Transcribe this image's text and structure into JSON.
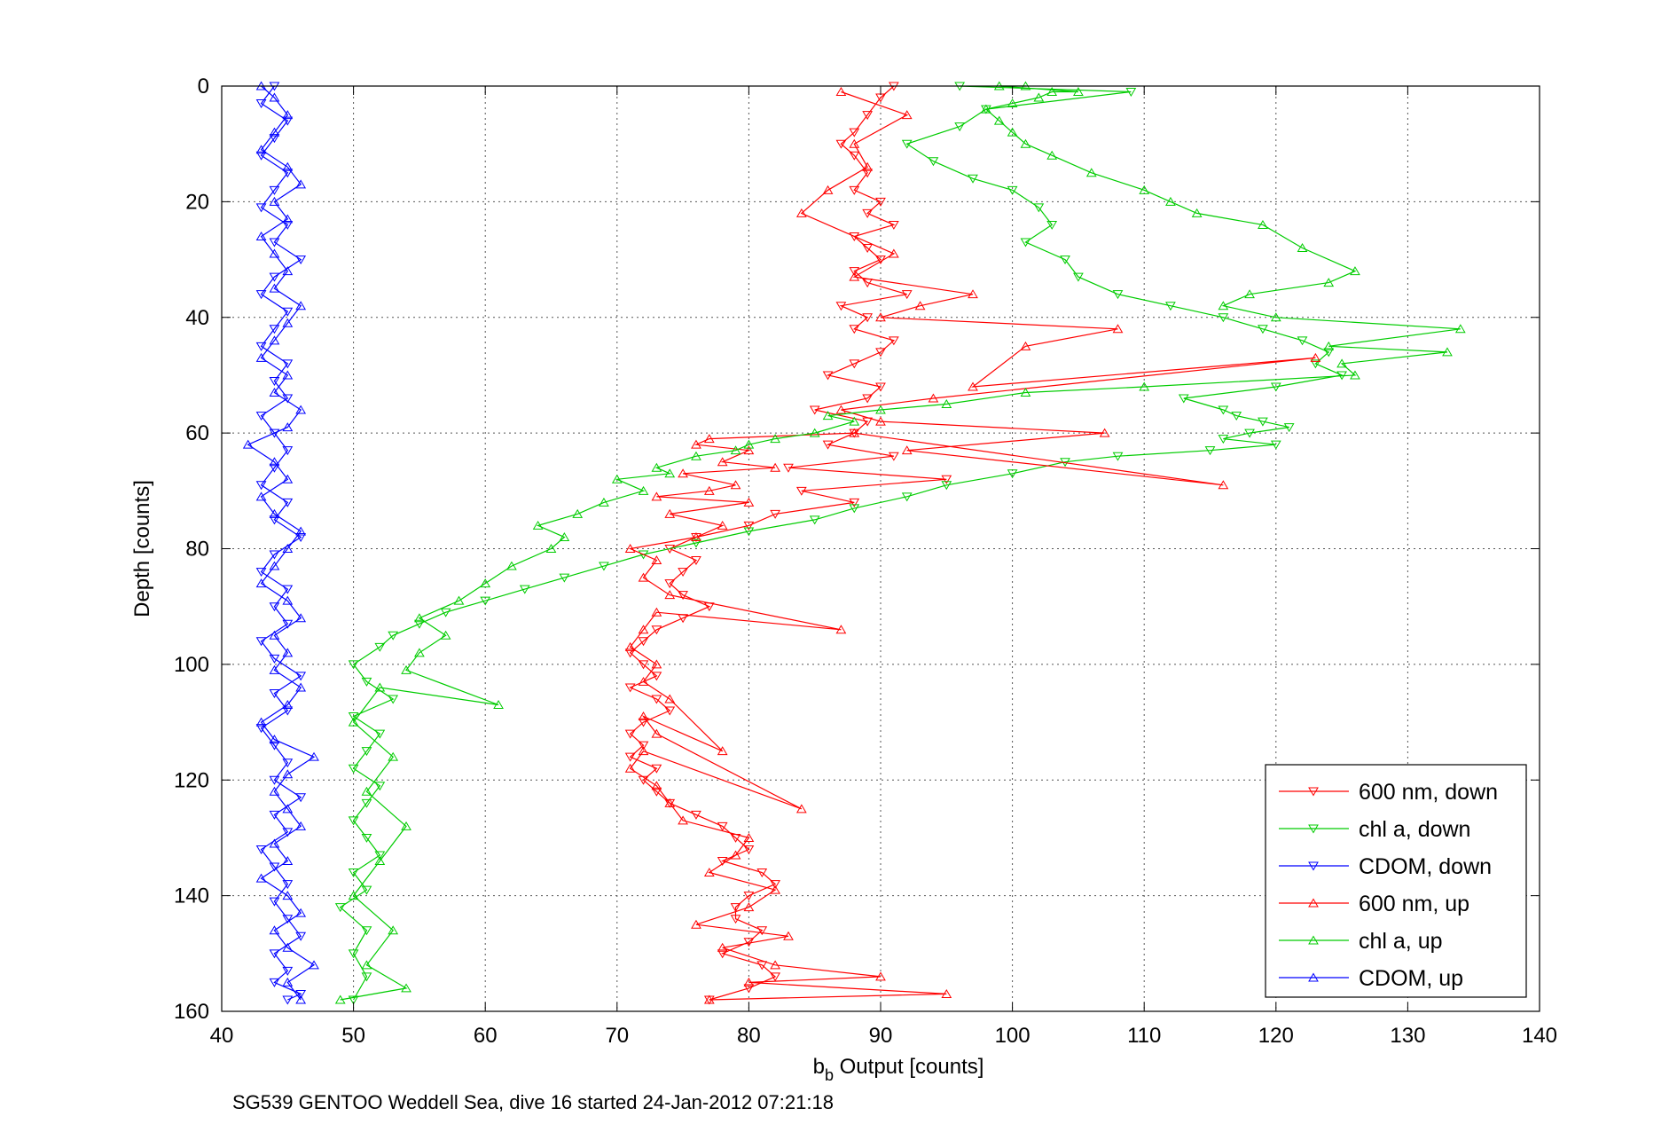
{
  "chart_data": {
    "type": "line",
    "xlabel_main": "b",
    "xlabel_sub": "b",
    "xlabel_rest": " Output [counts]",
    "ylabel": "Depth [counts]",
    "caption": "SG539 GENTOO Weddell Sea, dive 16 started 24-Jan-2012 07:21:18",
    "xlim": [
      40,
      140
    ],
    "ylim": [
      0,
      160
    ],
    "y_reversed": true,
    "grid": true,
    "legend_position": "bottom-right",
    "x_ticks": [
      "40",
      "50",
      "60",
      "70",
      "80",
      "90",
      "100",
      "110",
      "120",
      "130",
      "140"
    ],
    "y_ticks": [
      "0",
      "20",
      "40",
      "60",
      "80",
      "100",
      "120",
      "140",
      "160"
    ],
    "series": [
      {
        "name": "600 nm, down",
        "color": "#ff0000",
        "marker": "triangle-down",
        "x": [
          91,
          90,
          89,
          88,
          87,
          88,
          89,
          88,
          90,
          89,
          91,
          88,
          89,
          90,
          88,
          89,
          92,
          87,
          89,
          88,
          91,
          90,
          88,
          86,
          90,
          89,
          85,
          89,
          88,
          86,
          91,
          83,
          95,
          84,
          88,
          82,
          80,
          76,
          74,
          76,
          75,
          74,
          75,
          77,
          75,
          73,
          72,
          71,
          72,
          73,
          71,
          73,
          74,
          72,
          71,
          72,
          71,
          73,
          72,
          73,
          74,
          76,
          78,
          79,
          80,
          78,
          81,
          82,
          80,
          79,
          79,
          81,
          80,
          78,
          81,
          82,
          80,
          77
        ],
        "y": [
          0,
          2,
          5,
          8,
          10,
          12,
          15,
          18,
          20,
          22,
          24,
          26,
          28,
          30,
          32,
          34,
          36,
          38,
          40,
          42,
          44,
          46,
          48,
          50,
          52,
          54,
          56,
          58,
          60,
          62,
          64,
          66,
          68,
          70,
          72,
          74,
          76,
          78,
          80,
          82,
          84,
          86,
          88,
          90,
          92,
          94,
          96,
          98,
          100,
          102,
          104,
          106,
          108,
          110,
          112,
          114,
          116,
          118,
          120,
          122,
          124,
          126,
          128,
          130,
          132,
          134,
          136,
          138,
          140,
          142,
          144,
          146,
          148,
          150,
          152,
          154,
          156,
          158
        ]
      },
      {
        "name": "chl a, down",
        "color": "#00cc00",
        "marker": "triangle-down",
        "x": [
          96,
          109,
          98,
          96,
          92,
          94,
          97,
          100,
          102,
          103,
          101,
          104,
          105,
          108,
          112,
          116,
          119,
          122,
          124,
          123,
          125,
          120,
          113,
          116,
          117,
          119,
          121,
          118,
          116,
          120,
          115,
          108,
          104,
          100,
          95,
          92,
          88,
          85,
          80,
          76,
          72,
          69,
          66,
          63,
          60,
          57,
          55,
          53,
          52,
          50,
          51,
          53,
          50,
          52,
          51,
          50,
          52,
          51,
          50,
          51,
          52,
          50,
          51,
          49,
          51,
          50,
          51,
          50
        ],
        "y": [
          0,
          1,
          4,
          7,
          10,
          13,
          16,
          18,
          21,
          24,
          27,
          30,
          33,
          36,
          38,
          40,
          42,
          44,
          46,
          48,
          50,
          52,
          54,
          56,
          57,
          58,
          59,
          60,
          61,
          62,
          63,
          64,
          65,
          67,
          69,
          71,
          73,
          75,
          77,
          79,
          81,
          83,
          85,
          87,
          89,
          91,
          93,
          95,
          97,
          100,
          103,
          106,
          109,
          112,
          115,
          118,
          121,
          124,
          127,
          130,
          133,
          136,
          139,
          142,
          146,
          150,
          154,
          158
        ]
      },
      {
        "name": "CDOM, down",
        "color": "#0000ff",
        "marker": "triangle-down",
        "x": [
          44,
          43,
          45,
          44,
          43,
          45,
          44,
          43,
          45,
          44,
          46,
          44,
          43,
          45,
          44,
          43,
          45,
          44,
          45,
          43,
          44,
          45,
          44,
          43,
          45,
          44,
          46,
          44,
          43,
          45,
          44,
          45,
          43,
          44,
          46,
          44,
          45,
          43,
          44,
          45,
          44,
          46,
          44,
          45,
          43,
          44,
          45,
          44,
          45,
          46,
          44,
          45,
          44,
          46,
          45
        ],
        "y": [
          0,
          3,
          6,
          9,
          12,
          15,
          18,
          21,
          24,
          27,
          30,
          33,
          36,
          39,
          42,
          45,
          48,
          51,
          54,
          57,
          60,
          63,
          66,
          69,
          72,
          75,
          78,
          81,
          84,
          87,
          90,
          93,
          96,
          99,
          102,
          105,
          108,
          111,
          114,
          117,
          120,
          123,
          126,
          129,
          132,
          135,
          138,
          141,
          144,
          147,
          150,
          153,
          155,
          157,
          158
        ]
      },
      {
        "name": "600 nm, up",
        "color": "#ff0000",
        "marker": "triangle-up",
        "x": [
          77,
          95,
          80,
          90,
          82,
          78,
          83,
          76,
          80,
          82,
          77,
          79,
          80,
          75,
          74,
          73,
          71,
          72,
          84,
          73,
          72,
          78,
          74,
          72,
          73,
          71,
          72,
          73,
          87,
          74,
          72,
          73,
          71,
          76,
          78,
          74,
          80,
          73,
          77,
          79,
          75,
          82,
          78,
          80,
          76,
          77,
          88,
          116,
          92,
          107,
          90,
          87,
          94,
          123,
          97,
          101,
          108,
          90,
          93,
          97,
          88,
          91,
          84,
          86,
          89,
          88,
          92,
          87
        ],
        "y": [
          158,
          157,
          155,
          154,
          152,
          149,
          147,
          145,
          142,
          139,
          136,
          133,
          130,
          127,
          124,
          121,
          118,
          115,
          125,
          112,
          109,
          115,
          106,
          103,
          100,
          97,
          94,
          91,
          94,
          88,
          85,
          82,
          80,
          78,
          76,
          74,
          72,
          71,
          70,
          69,
          67,
          66,
          65,
          63,
          62,
          61,
          60,
          69,
          63,
          60,
          58,
          56,
          54,
          47,
          52,
          45,
          42,
          40,
          38,
          36,
          33,
          29,
          22,
          18,
          14,
          10,
          5,
          1
        ]
      },
      {
        "name": "chl a, up",
        "color": "#00cc00",
        "marker": "triangle-up",
        "x": [
          49,
          54,
          51,
          53,
          50,
          52,
          54,
          51,
          53,
          50,
          52,
          61,
          54,
          55,
          57,
          55,
          58,
          60,
          62,
          65,
          66,
          64,
          67,
          69,
          72,
          70,
          74,
          73,
          76,
          79,
          80,
          82,
          85,
          88,
          86,
          90,
          95,
          101,
          110,
          126,
          125,
          133,
          124,
          134,
          120,
          116,
          118,
          124,
          126,
          122,
          119,
          114,
          112,
          110,
          106,
          103,
          101,
          100,
          99,
          98,
          100,
          102,
          103,
          105,
          99,
          101
        ],
        "y": [
          158,
          156,
          152,
          146,
          140,
          134,
          128,
          122,
          116,
          110,
          104,
          107,
          101,
          98,
          95,
          92,
          89,
          86,
          83,
          80,
          78,
          76,
          74,
          72,
          70,
          68,
          67,
          66,
          64,
          63,
          62,
          61,
          60,
          58,
          57,
          56,
          55,
          53,
          52,
          50,
          48,
          46,
          45,
          42,
          40,
          38,
          36,
          34,
          32,
          28,
          24,
          22,
          20,
          18,
          15,
          12,
          10,
          8,
          6,
          4,
          3,
          2,
          1,
          1,
          0,
          0
        ]
      },
      {
        "name": "CDOM, up",
        "color": "#0000ff",
        "marker": "triangle-up",
        "x": [
          46,
          45,
          47,
          45,
          44,
          46,
          45,
          43,
          45,
          44,
          46,
          45,
          44,
          45,
          47,
          44,
          43,
          45,
          46,
          44,
          45,
          44,
          46,
          45,
          43,
          44,
          45,
          46,
          44,
          43,
          45,
          44,
          42,
          45,
          46,
          44,
          45,
          43,
          44,
          45,
          46,
          44,
          45,
          44,
          43,
          45,
          44,
          46,
          45,
          43,
          44,
          45,
          44,
          43
        ],
        "y": [
          158,
          155,
          152,
          149,
          146,
          143,
          140,
          137,
          134,
          131,
          128,
          125,
          122,
          119,
          116,
          113,
          110,
          107,
          104,
          101,
          98,
          95,
          92,
          89,
          86,
          83,
          80,
          77,
          74,
          71,
          68,
          65,
          62,
          59,
          56,
          53,
          50,
          47,
          44,
          41,
          38,
          35,
          32,
          29,
          26,
          23,
          20,
          17,
          14,
          11,
          8,
          5,
          2,
          0
        ]
      }
    ]
  }
}
